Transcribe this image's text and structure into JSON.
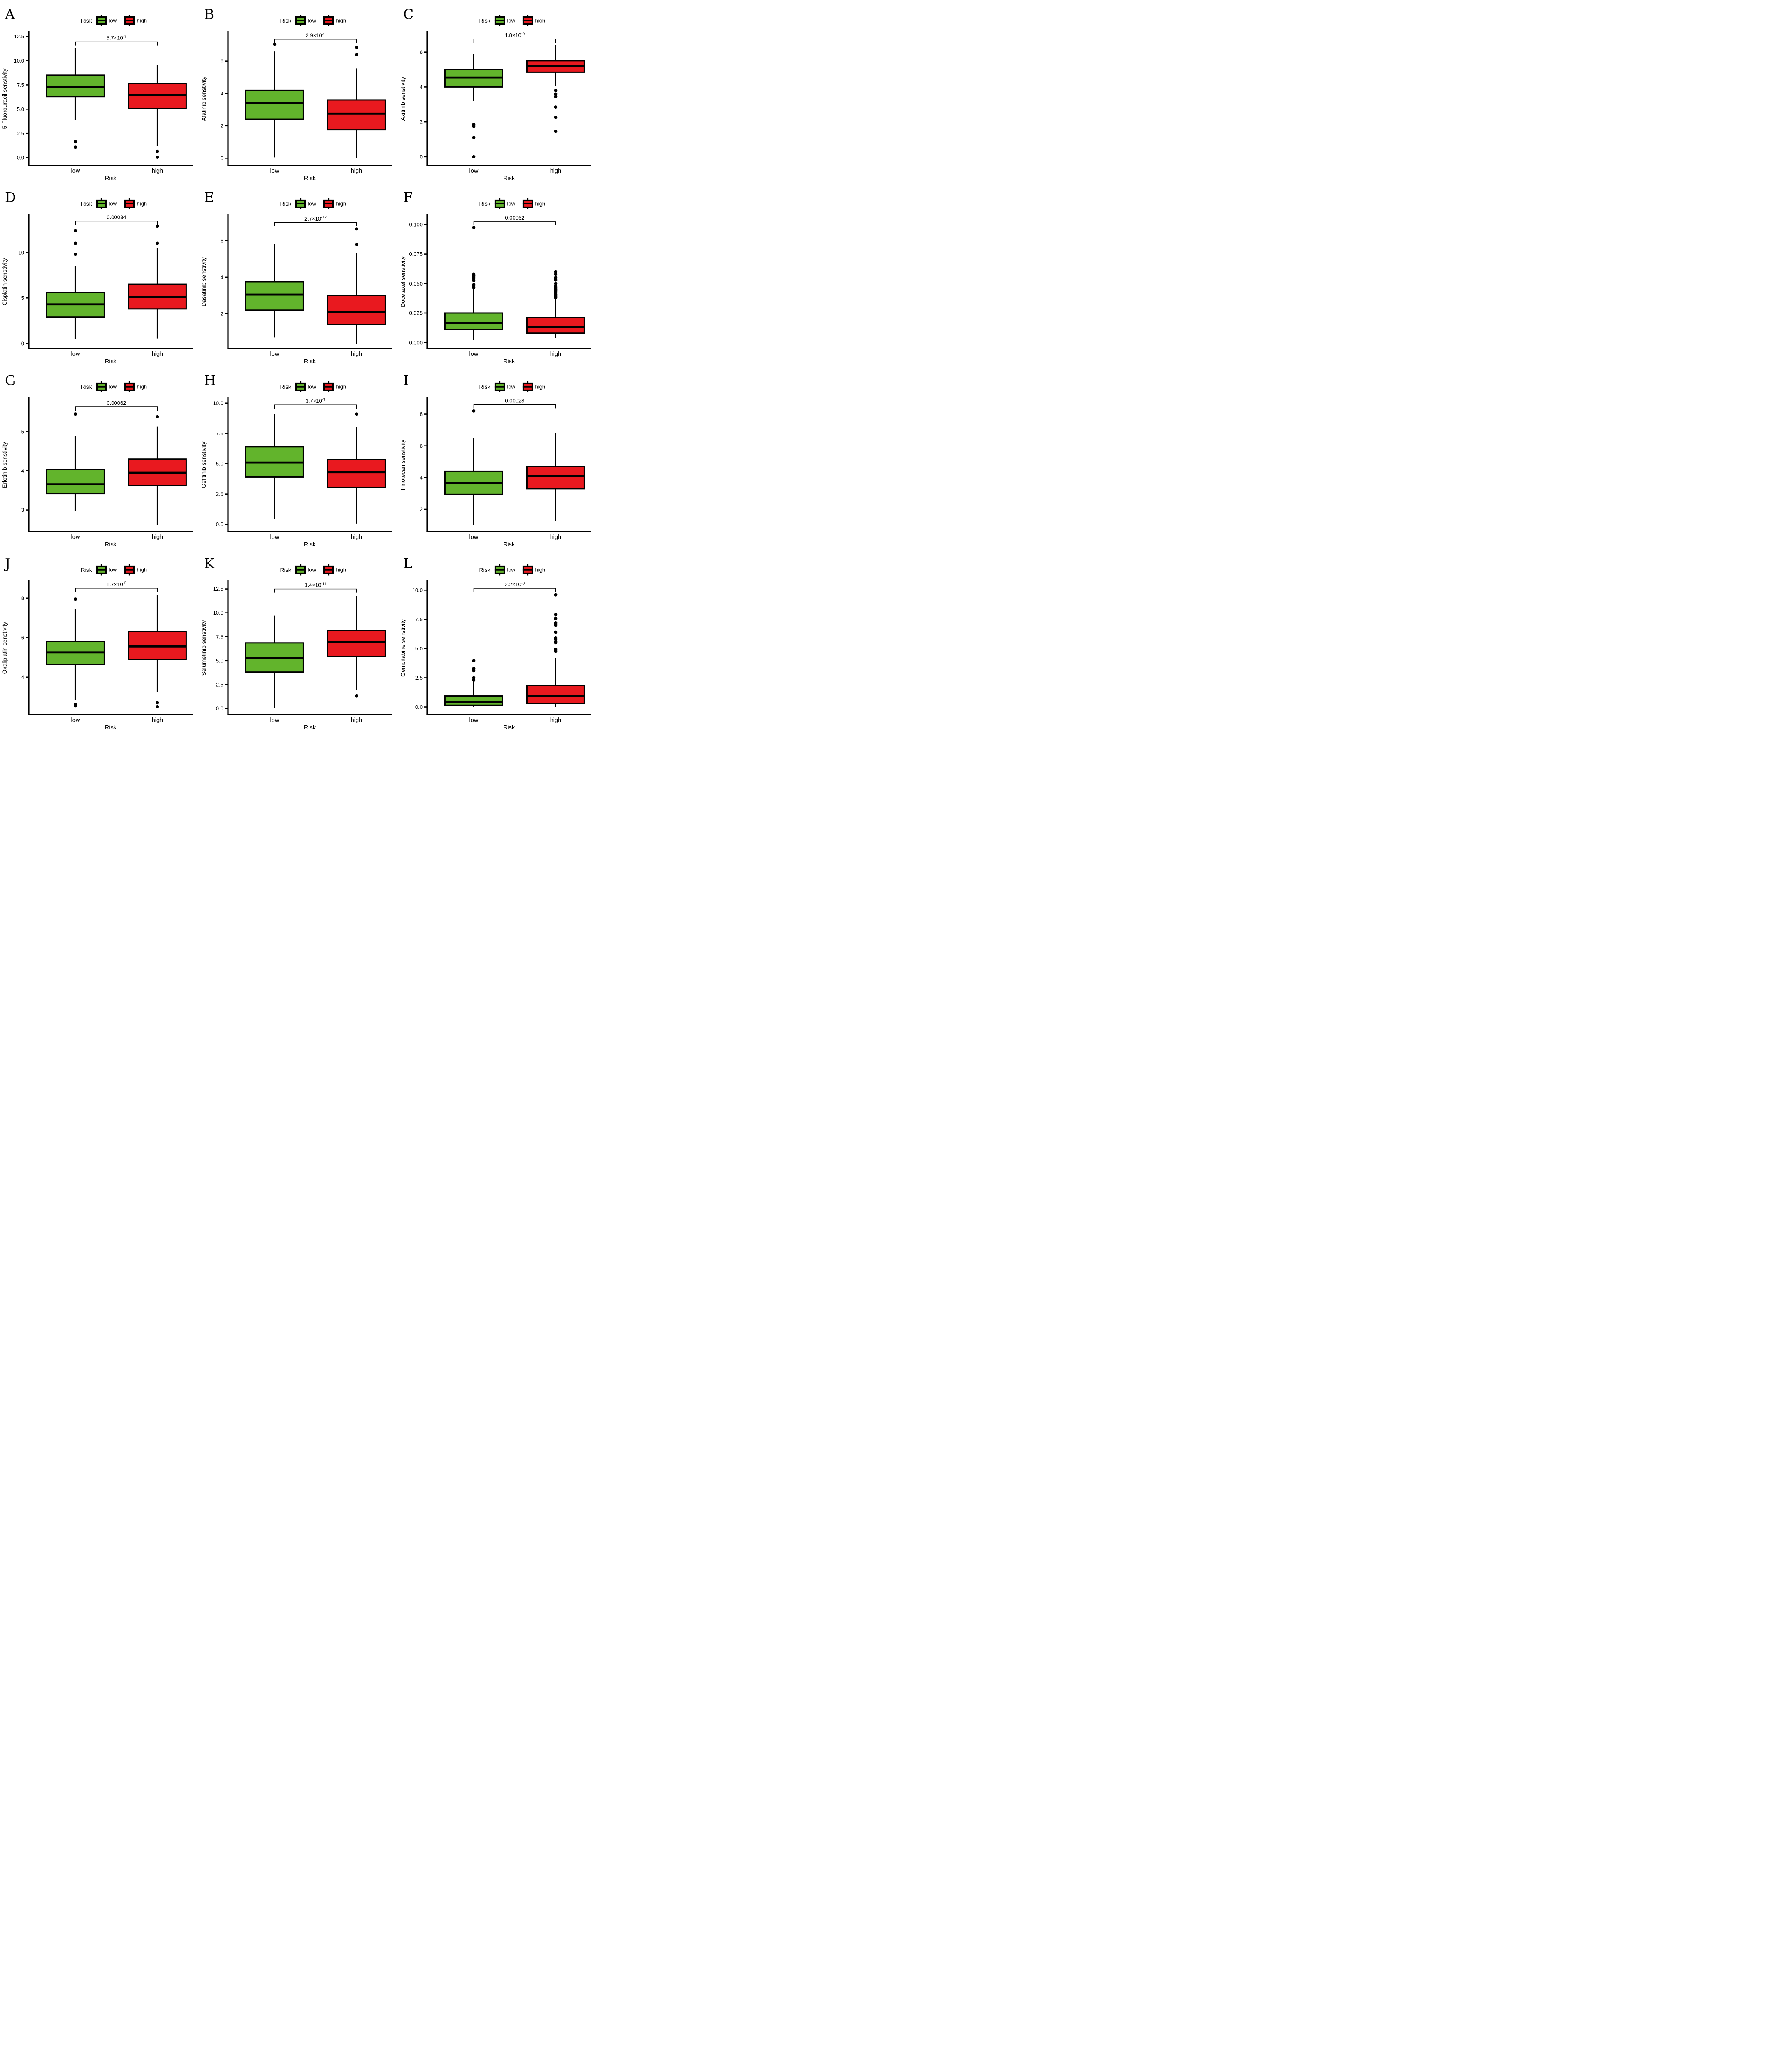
{
  "figure": {
    "legend_title": "Risk",
    "legend_items": [
      "low",
      "high"
    ],
    "colors": {
      "low": "#62B42C",
      "high": "#E9191F"
    },
    "xlabel": "Risk",
    "categories": [
      "low",
      "high"
    ]
  },
  "chart_data": [
    {
      "type": "box",
      "panel": "A",
      "ylabel": "5-Fluorouracil senstivity",
      "xlabel": "Risk",
      "categories": [
        "low",
        "high"
      ],
      "p_display": "5.7×10^-7",
      "p_base": "5.7×10",
      "p_sup": "-7",
      "ytick_values": [
        0,
        2.5,
        5,
        7.5,
        10,
        12.5
      ],
      "ytick_labels": [
        "0.0",
        "2.5",
        "5.0",
        "7.5",
        "10.0",
        "12.5"
      ],
      "ylim": [
        -0.8,
        12.95
      ],
      "bracket_y": 11.95,
      "series": [
        {
          "name": "low",
          "q1": 6.3,
          "median": 7.3,
          "q3": 8.5,
          "whisker_low": 3.9,
          "whisker_high": 11.3,
          "outliers": [
            1.65,
            1.1
          ]
        },
        {
          "name": "high",
          "q1": 5.05,
          "median": 6.45,
          "q3": 7.65,
          "whisker_low": 1.2,
          "whisker_high": 9.55,
          "outliers": [
            0.65,
            0.05
          ]
        }
      ]
    },
    {
      "type": "box",
      "panel": "B",
      "ylabel": "Afatinib senstivity",
      "xlabel": "Risk",
      "categories": [
        "low",
        "high"
      ],
      "p_display": "2.9×10^-5",
      "p_base": "2.9×10",
      "p_sup": "-5",
      "ytick_values": [
        0,
        2,
        4,
        6
      ],
      "ytick_labels": [
        "0",
        "2",
        "4",
        "6"
      ],
      "ylim": [
        -0.45,
        7.8
      ],
      "bracket_y": 7.35,
      "series": [
        {
          "name": "low",
          "q1": 2.4,
          "median": 3.4,
          "q3": 4.2,
          "whisker_low": 0.05,
          "whisker_high": 6.6,
          "outliers": [
            7.05
          ]
        },
        {
          "name": "high",
          "q1": 1.75,
          "median": 2.75,
          "q3": 3.6,
          "whisker_low": 0.0,
          "whisker_high": 5.55,
          "outliers": [
            6.85,
            6.4
          ]
        }
      ]
    },
    {
      "type": "box",
      "panel": "C",
      "ylabel": "Axitinib senstivity",
      "xlabel": "Risk",
      "categories": [
        "low",
        "high"
      ],
      "p_display": "1.8×10^-9",
      "p_base": "1.8×10",
      "p_sup": "-9",
      "ytick_values": [
        0,
        2,
        4,
        6
      ],
      "ytick_labels": [
        "0",
        "2",
        "4",
        "6"
      ],
      "ylim": [
        -0.5,
        7.15
      ],
      "bracket_y": 6.75,
      "series": [
        {
          "name": "low",
          "q1": 4.0,
          "median": 4.55,
          "q3": 5.0,
          "whisker_low": 3.2,
          "whisker_high": 5.9,
          "outliers": [
            1.85,
            1.75,
            1.1,
            0.0
          ]
        },
        {
          "name": "high",
          "q1": 4.85,
          "median": 5.22,
          "q3": 5.5,
          "whisker_low": 4.05,
          "whisker_high": 6.4,
          "outliers": [
            3.8,
            3.6,
            3.45,
            2.85,
            2.25,
            1.45
          ]
        }
      ]
    },
    {
      "type": "box",
      "panel": "D",
      "ylabel": "Cisplatin senstivity",
      "xlabel": "Risk",
      "categories": [
        "low",
        "high"
      ],
      "p_display": "0.00034",
      "p_base": "0.00034",
      "p_sup": "",
      "ytick_values": [
        0,
        5,
        10
      ],
      "ytick_labels": [
        "0",
        "5",
        "10"
      ],
      "ylim": [
        -0.55,
        14.1
      ],
      "bracket_y": 13.45,
      "series": [
        {
          "name": "low",
          "q1": 2.9,
          "median": 4.3,
          "q3": 5.6,
          "whisker_low": 0.5,
          "whisker_high": 8.5,
          "outliers": [
            9.8,
            11.0,
            12.4
          ]
        },
        {
          "name": "high",
          "q1": 3.8,
          "median": 5.1,
          "q3": 6.5,
          "whisker_low": 0.55,
          "whisker_high": 10.5,
          "outliers": [
            11.0,
            12.9
          ]
        }
      ]
    },
    {
      "type": "box",
      "panel": "E",
      "ylabel": "Dasatinib senstivity",
      "xlabel": "Risk",
      "categories": [
        "low",
        "high"
      ],
      "p_display": "2.7×10^-12",
      "p_base": "2.7×10",
      "p_sup": "-12",
      "ytick_values": [
        2,
        4,
        6
      ],
      "ytick_labels": [
        "2",
        "4",
        "6"
      ],
      "ylim": [
        0.1,
        7.4
      ],
      "bracket_y": 7.0,
      "series": [
        {
          "name": "low",
          "q1": 2.2,
          "median": 3.05,
          "q3": 3.75,
          "whisker_low": 0.7,
          "whisker_high": 5.8,
          "outliers": []
        },
        {
          "name": "high",
          "q1": 1.4,
          "median": 2.1,
          "q3": 3.0,
          "whisker_low": 0.35,
          "whisker_high": 5.35,
          "outliers": [
            5.8,
            6.65
          ]
        }
      ]
    },
    {
      "type": "box",
      "panel": "F",
      "ylabel": "Docetaxel senstivity",
      "xlabel": "Risk",
      "categories": [
        "low",
        "high"
      ],
      "p_display": "0.00062",
      "p_base": "0.00062",
      "p_sup": "",
      "ytick_values": [
        0,
        0.025,
        0.05,
        0.075,
        0.1
      ],
      "ytick_labels": [
        "0.000",
        "0.025",
        "0.050",
        "0.075",
        "0.100"
      ],
      "ylim": [
        -0.005,
        0.108
      ],
      "bracket_y": 0.1025,
      "series": [
        {
          "name": "low",
          "q1": 0.011,
          "median": 0.0165,
          "q3": 0.025,
          "whisker_low": 0.002,
          "whisker_high": 0.046,
          "outliers": [
            0.0465,
            0.048,
            0.049,
            0.0525,
            0.054,
            0.0555,
            0.057,
            0.058,
            0.0975
          ]
        },
        {
          "name": "high",
          "q1": 0.008,
          "median": 0.013,
          "q3": 0.021,
          "whisker_low": 0.004,
          "whisker_high": 0.0375,
          "outliers": [
            0.038,
            0.039,
            0.04,
            0.041,
            0.042,
            0.043,
            0.044,
            0.045,
            0.046,
            0.047,
            0.048,
            0.05,
            0.053,
            0.055,
            0.058,
            0.06
          ]
        }
      ]
    },
    {
      "type": "box",
      "panel": "G",
      "ylabel": "Erlotinib senstivity",
      "xlabel": "Risk",
      "categories": [
        "low",
        "high"
      ],
      "p_display": "0.00062",
      "p_base": "0.00062",
      "p_sup": "",
      "ytick_values": [
        3,
        4,
        5
      ],
      "ytick_labels": [
        "3",
        "4",
        "5"
      ],
      "ylim": [
        2.45,
        5.85
      ],
      "bracket_y": 5.63,
      "series": [
        {
          "name": "low",
          "q1": 3.42,
          "median": 3.65,
          "q3": 4.03,
          "whisker_low": 2.97,
          "whisker_high": 4.88,
          "outliers": [
            5.45
          ]
        },
        {
          "name": "high",
          "q1": 3.62,
          "median": 3.95,
          "q3": 4.3,
          "whisker_low": 2.62,
          "whisker_high": 5.13,
          "outliers": [
            5.38
          ]
        }
      ]
    },
    {
      "type": "box",
      "panel": "H",
      "ylabel": "Gefitinib senstivity",
      "xlabel": "Risk",
      "categories": [
        "low",
        "high"
      ],
      "p_display": "3.7×10^-7",
      "p_base": "3.7×10",
      "p_sup": "-7",
      "ytick_values": [
        0,
        2.5,
        5,
        7.5,
        10
      ],
      "ytick_labels": [
        "0.0",
        "2.5",
        "5.0",
        "7.5",
        "10.0"
      ],
      "ylim": [
        -0.6,
        10.4
      ],
      "bracket_y": 9.85,
      "series": [
        {
          "name": "low",
          "q1": 3.9,
          "median": 5.1,
          "q3": 6.4,
          "whisker_low": 0.45,
          "whisker_high": 9.1,
          "outliers": []
        },
        {
          "name": "high",
          "q1": 3.05,
          "median": 4.3,
          "q3": 5.35,
          "whisker_low": 0.05,
          "whisker_high": 8.05,
          "outliers": [
            9.1
          ]
        }
      ]
    },
    {
      "type": "box",
      "panel": "I",
      "ylabel": "Irinotecan senstivity",
      "xlabel": "Risk",
      "categories": [
        "low",
        "high"
      ],
      "p_display": "0.00028",
      "p_base": "0.00028",
      "p_sup": "",
      "ytick_values": [
        2,
        4,
        6,
        8
      ],
      "ytick_labels": [
        "2",
        "4",
        "6",
        "8"
      ],
      "ylim": [
        0.6,
        9.0
      ],
      "bracket_y": 8.6,
      "series": [
        {
          "name": "low",
          "q1": 2.95,
          "median": 3.65,
          "q3": 4.4,
          "whisker_low": 1.0,
          "whisker_high": 6.5,
          "outliers": [
            8.2
          ]
        },
        {
          "name": "high",
          "q1": 3.3,
          "median": 4.1,
          "q3": 4.7,
          "whisker_low": 1.25,
          "whisker_high": 6.8,
          "outliers": []
        }
      ]
    },
    {
      "type": "box",
      "panel": "J",
      "ylabel": "Oxaliplatin senstivity",
      "xlabel": "Risk",
      "categories": [
        "low",
        "high"
      ],
      "p_display": "1.7×10^-5",
      "p_base": "1.7×10",
      "p_sup": "-5",
      "ytick_values": [
        4,
        6,
        8
      ],
      "ytick_labels": [
        "4",
        "6",
        "8"
      ],
      "ylim": [
        2.1,
        8.85
      ],
      "bracket_y": 8.5,
      "series": [
        {
          "name": "low",
          "q1": 4.65,
          "median": 5.25,
          "q3": 5.8,
          "whisker_low": 2.85,
          "whisker_high": 7.45,
          "outliers": [
            7.95,
            2.6,
            2.55
          ]
        },
        {
          "name": "high",
          "q1": 4.9,
          "median": 5.55,
          "q3": 6.3,
          "whisker_low": 3.25,
          "whisker_high": 8.15,
          "outliers": [
            2.7,
            2.5
          ]
        }
      ]
    },
    {
      "type": "box",
      "panel": "K",
      "ylabel": "Selumetinib senstivity",
      "xlabel": "Risk",
      "categories": [
        "low",
        "high"
      ],
      "p_display": "1.4×10^-11",
      "p_base": "1.4×10",
      "p_sup": "-11",
      "ytick_values": [
        0,
        2.5,
        5,
        7.5,
        10,
        12.5
      ],
      "ytick_labels": [
        "0.0",
        "2.5",
        "5.0",
        "7.5",
        "10.0",
        "12.5"
      ],
      "ylim": [
        -0.65,
        13.3
      ],
      "bracket_y": 12.5,
      "series": [
        {
          "name": "low",
          "q1": 3.8,
          "median": 5.25,
          "q3": 6.85,
          "whisker_low": 0.05,
          "whisker_high": 9.7,
          "outliers": []
        },
        {
          "name": "high",
          "q1": 5.4,
          "median": 6.95,
          "q3": 8.15,
          "whisker_low": 1.95,
          "whisker_high": 11.75,
          "outliers": [
            1.3
          ]
        }
      ]
    },
    {
      "type": "box",
      "panel": "L",
      "ylabel": "Gemcitabine senstivity",
      "xlabel": "Risk",
      "categories": [
        "low",
        "high"
      ],
      "p_display": "2.2×10^-8",
      "p_base": "2.2×10",
      "p_sup": "-8",
      "ytick_values": [
        0,
        2.5,
        5,
        7.5,
        10
      ],
      "ytick_labels": [
        "0.0",
        "2.5",
        "5.0",
        "7.5",
        "10.0"
      ],
      "ylim": [
        -0.65,
        10.75
      ],
      "bracket_y": 10.15,
      "series": [
        {
          "name": "low",
          "q1": 0.15,
          "median": 0.45,
          "q3": 0.95,
          "whisker_low": 0.02,
          "whisker_high": 2.2,
          "outliers": [
            2.3,
            2.5,
            3.1,
            3.25,
            3.3,
            3.95
          ]
        },
        {
          "name": "high",
          "q1": 0.3,
          "median": 0.95,
          "q3": 1.85,
          "whisker_low": 0.02,
          "whisker_high": 4.2,
          "outliers": [
            4.75,
            4.85,
            4.95,
            5.5,
            5.6,
            5.8,
            5.9,
            6.4,
            7.0,
            7.1,
            7.2,
            7.55,
            7.6,
            7.9,
            9.6
          ]
        }
      ]
    }
  ]
}
